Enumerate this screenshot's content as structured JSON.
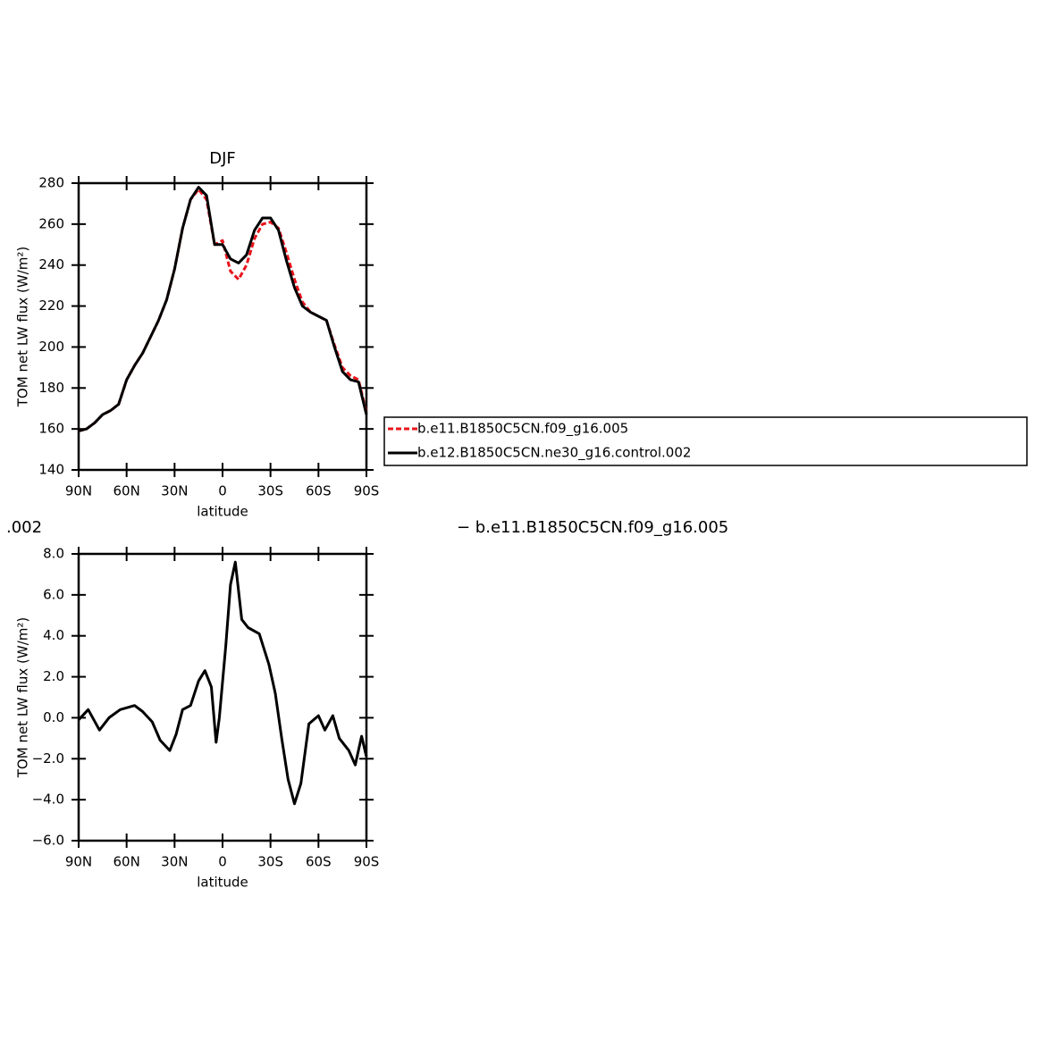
{
  "chart_data": [
    {
      "type": "line",
      "title": "DJF",
      "xlabel": "latitude",
      "ylabel": "TOM net LW flux (W/m²)",
      "x": [
        90,
        85,
        80,
        75,
        70,
        65,
        60,
        55,
        50,
        45,
        40,
        35,
        30,
        25,
        20,
        15,
        10,
        5,
        0,
        -5,
        -10,
        -15,
        -20,
        -25,
        -30,
        -35,
        -40,
        -45,
        -50,
        -55,
        -60,
        -65,
        -70,
        -75,
        -80,
        -85,
        -90
      ],
      "series": [
        {
          "name": "b.e11.B1850C5CN.f09_g16.005",
          "color": "#e8141b",
          "dash": true,
          "values": [
            159,
            160,
            163,
            167,
            169,
            172,
            184,
            191,
            197,
            205,
            213,
            223,
            238,
            258,
            272,
            277,
            272,
            250,
            252,
            237,
            233,
            240,
            253,
            260,
            261,
            258,
            246,
            233,
            222,
            217,
            215,
            213,
            201,
            190,
            186,
            184,
            168
          ]
        },
        {
          "name": "b.e12.B1850C5CN.ne30_g16.control.002",
          "color": "#000000",
          "dash": false,
          "values": [
            159,
            160,
            163,
            167,
            169,
            172,
            184,
            191,
            197,
            205,
            213,
            223,
            238,
            258,
            272,
            278,
            274,
            250,
            250,
            243,
            241,
            245,
            257,
            263,
            263,
            257,
            242,
            229,
            220,
            217,
            215,
            213,
            200,
            188,
            184,
            183,
            167
          ]
        }
      ],
      "xlim": [
        90,
        -90
      ],
      "xticks": [
        {
          "value": 90,
          "label": "90N"
        },
        {
          "value": 60,
          "label": "60N"
        },
        {
          "value": 30,
          "label": "30N"
        },
        0,
        {
          "value": -30,
          "label": "30S"
        },
        {
          "value": -60,
          "label": "60S"
        },
        {
          "value": -90,
          "label": "90S"
        }
      ],
      "ylim": [
        140,
        280
      ],
      "yticks": [
        140,
        160,
        180,
        200,
        220,
        240,
        260,
        280
      ]
    },
    {
      "type": "line",
      "xlabel": "latitude",
      "ylabel": "TOM net LW flux (W/m²)",
      "x": [
        90,
        84,
        77,
        71,
        64,
        55,
        50,
        44,
        39,
        33,
        29,
        25,
        20,
        15,
        11,
        7,
        4,
        2,
        -2,
        -5,
        -8,
        -12,
        -16,
        -23,
        -29,
        -33,
        -37,
        -41,
        -45,
        -49,
        -54,
        -60,
        -64,
        -69,
        -73,
        -79,
        -83,
        -87,
        -90
      ],
      "series": [
        {
          "color": "#000000",
          "dash": false,
          "values": [
            -0.1,
            0.4,
            -0.6,
            0,
            0.4,
            0.6,
            0.3,
            -0.2,
            -1.1,
            -1.6,
            -0.8,
            0.4,
            0.6,
            1.8,
            2.3,
            1.5,
            -1.2,
            0,
            3.5,
            6.5,
            7.6,
            4.8,
            4.4,
            4.1,
            2.6,
            1.2,
            -1,
            -3.0,
            -4.2,
            -3.2,
            -0.3,
            0.1,
            -0.6,
            0.1,
            -1,
            -1.6,
            -2.3,
            -0.9,
            -1.9
          ]
        }
      ],
      "xlim": [
        90,
        -90
      ],
      "xticks": [
        {
          "value": 90,
          "label": "90N"
        },
        {
          "value": 60,
          "label": "60N"
        },
        {
          "value": 30,
          "label": "30N"
        },
        0,
        {
          "value": -30,
          "label": "30S"
        },
        {
          "value": -60,
          "label": "60S"
        },
        {
          "value": -90,
          "label": "90S"
        }
      ],
      "ylim": [
        -6,
        8
      ],
      "yticks": [
        {
          "value": -6,
          "label": "−6.0"
        },
        {
          "value": -4,
          "label": "−4.0"
        },
        {
          "value": -2,
          "label": "−2.0"
        },
        {
          "value": 0,
          "label": "0.0"
        },
        {
          "value": 2,
          "label": "2.0"
        },
        {
          "value": 4,
          "label": "4.0"
        },
        {
          "value": 6,
          "label": "6.0"
        },
        {
          "value": 8,
          "label": "8.0"
        }
      ]
    }
  ],
  "fragments": [
    ".002",
    "− b.e11.B1850C5CN.f09_g16.005"
  ]
}
